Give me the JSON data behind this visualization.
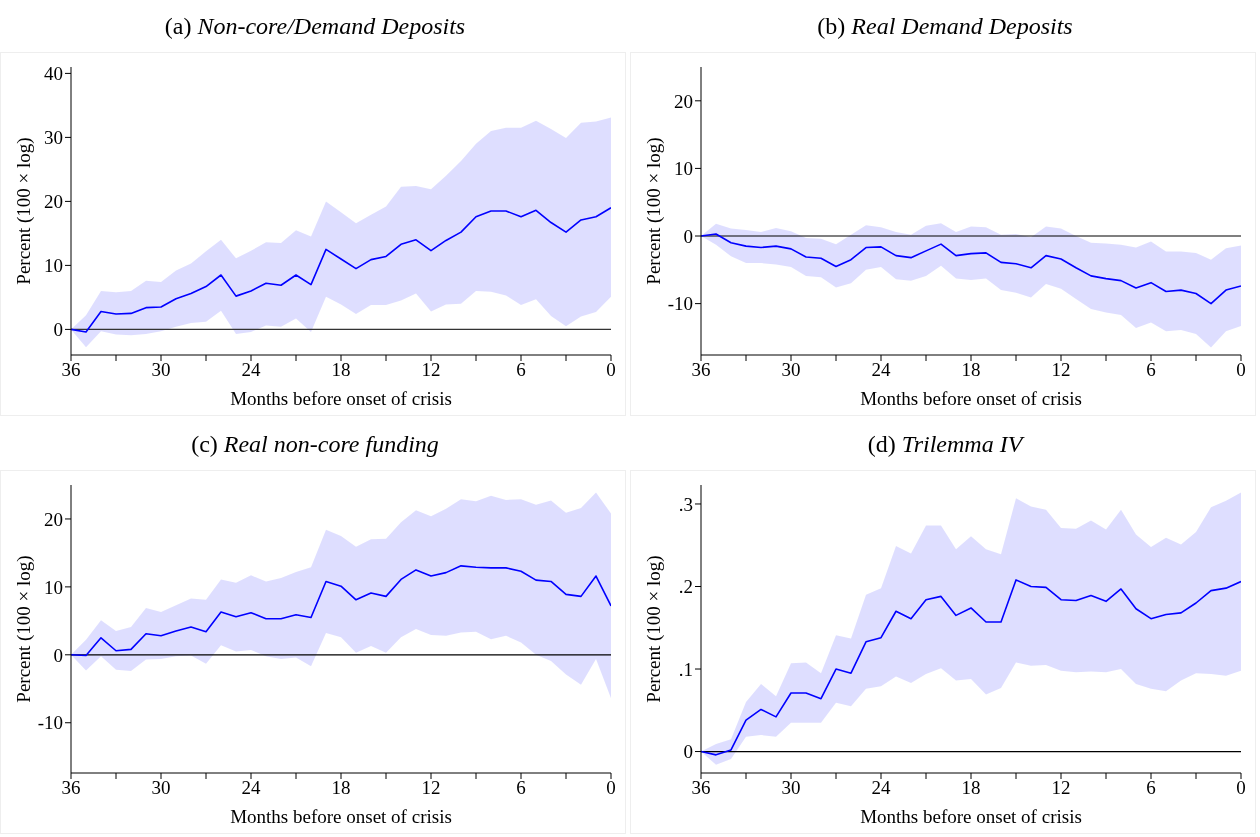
{
  "chart_data": [
    {
      "type": "line",
      "title": "(a) Non-core/Demand Deposits",
      "xlabel": "Months before onset of crisis",
      "ylabel": "Percent (100 × log)",
      "marker": "none",
      "line_style": "solid",
      "x": [
        36,
        35,
        34,
        33,
        32,
        31,
        30,
        29,
        28,
        27,
        26,
        25,
        24,
        23,
        22,
        21,
        20,
        19,
        18,
        17,
        16,
        15,
        14,
        13,
        12,
        11,
        10,
        9,
        8,
        7,
        6,
        5,
        4,
        3,
        2,
        1,
        0
      ],
      "xlim": [
        36,
        0
      ],
      "xticks": [
        36,
        {
          "value": 33,
          "label": null
        },
        30,
        {
          "value": 27,
          "label": null
        },
        24,
        {
          "value": 21,
          "label": null
        },
        18,
        {
          "value": 15,
          "label": null
        },
        12,
        {
          "value": 9,
          "label": null
        },
        6,
        {
          "value": 3,
          "label": null
        },
        0
      ],
      "ylim": [
        -4,
        41
      ],
      "yticks": [
        0,
        10,
        20,
        30,
        40
      ],
      "ref_lines": [
        {
          "axis": "y",
          "value": 0,
          "color": "#333333"
        }
      ],
      "series": [
        {
          "color": "#0000ff",
          "values": [
            0,
            -0.4,
            2.8,
            2.4,
            2.5,
            3.4,
            3.5,
            4.8,
            5.6,
            6.7,
            8.5,
            5.2,
            6.0,
            7.2,
            6.9,
            8.5,
            7.0,
            12.5,
            11.0,
            9.5,
            10.9,
            11.4,
            13.3,
            14.0,
            12.3,
            13.9,
            15.2,
            17.6,
            18.5,
            18.5,
            17.6,
            18.6,
            16.7,
            15.2,
            17.1,
            17.6,
            19.0
          ],
          "upper": [
            0,
            2.2,
            6.0,
            5.8,
            6.0,
            7.6,
            7.4,
            9.2,
            10.3,
            12.2,
            14.0,
            11.1,
            12.3,
            13.6,
            13.5,
            15.5,
            14.5,
            20.0,
            18.3,
            16.6,
            17.9,
            19.2,
            22.3,
            22.4,
            21.9,
            24.0,
            26.3,
            29.0,
            31.0,
            31.5,
            31.5,
            32.6,
            31.3,
            29.9,
            32.3,
            32.5,
            33.1
          ],
          "lower": [
            0,
            -2.8,
            -0.3,
            -0.8,
            -0.9,
            -0.7,
            -0.3,
            0.4,
            1.0,
            1.2,
            2.9,
            -0.7,
            -0.4,
            0.6,
            0.4,
            1.7,
            -0.4,
            5.1,
            3.9,
            2.4,
            3.8,
            3.8,
            4.5,
            5.6,
            2.8,
            3.9,
            4.0,
            6.0,
            5.9,
            5.3,
            3.8,
            4.7,
            2.1,
            0.5,
            2.0,
            2.7,
            5.1
          ]
        }
      ]
    },
    {
      "type": "line",
      "title": "(b) Real Demand Deposits",
      "xlabel": "Months before onset of crisis",
      "ylabel": "Percent (100 × log)",
      "marker": "none",
      "line_style": "solid",
      "x": [
        36,
        35,
        34,
        33,
        32,
        31,
        30,
        29,
        28,
        27,
        26,
        25,
        24,
        23,
        22,
        21,
        20,
        19,
        18,
        17,
        16,
        15,
        14,
        13,
        12,
        11,
        10,
        9,
        8,
        7,
        6,
        5,
        4,
        3,
        2,
        1,
        0
      ],
      "xlim": [
        36,
        0
      ],
      "xticks": [
        36,
        {
          "value": 33,
          "label": null
        },
        30,
        {
          "value": 27,
          "label": null
        },
        24,
        {
          "value": 21,
          "label": null
        },
        18,
        {
          "value": 15,
          "label": null
        },
        12,
        {
          "value": 9,
          "label": null
        },
        6,
        {
          "value": 3,
          "label": null
        },
        0
      ],
      "ylim": [
        -17.6,
        25
      ],
      "yticks": [
        -10,
        0,
        10,
        20
      ],
      "ref_lines": [
        {
          "axis": "y",
          "value": 0,
          "color": "#000000"
        }
      ],
      "series": [
        {
          "color": "#0000ff",
          "values": [
            0,
            0.3,
            -1.0,
            -1.5,
            -1.7,
            -1.5,
            -1.9,
            -3.1,
            -3.3,
            -4.5,
            -3.5,
            -1.7,
            -1.6,
            -2.9,
            -3.2,
            -2.2,
            -1.2,
            -2.9,
            -2.6,
            -2.5,
            -3.9,
            -4.1,
            -4.7,
            -2.9,
            -3.4,
            -4.7,
            -5.9,
            -6.3,
            -6.6,
            -7.7,
            -6.9,
            -8.2,
            -8.0,
            -8.5,
            -10.0,
            -8.0,
            -7.4
          ],
          "upper": [
            0,
            1.8,
            1.1,
            0.9,
            0.6,
            1.2,
            0.7,
            -0.3,
            -0.4,
            -1.2,
            0.2,
            1.6,
            1.3,
            0.6,
            0.2,
            1.5,
            1.9,
            0.6,
            1.4,
            1.3,
            0.2,
            0.3,
            -0.2,
            1.4,
            1.1,
            0,
            -1.0,
            -1.1,
            -1.3,
            -1.7,
            -0.8,
            -2.3,
            -2.3,
            -2.5,
            -3.5,
            -1.8,
            -1.4
          ],
          "lower": [
            0,
            -1.3,
            -3.0,
            -4.0,
            -4.0,
            -4.2,
            -4.6,
            -5.9,
            -6.1,
            -7.6,
            -7.0,
            -5.0,
            -4.6,
            -6.4,
            -6.6,
            -5.9,
            -4.4,
            -6.3,
            -6.5,
            -6.3,
            -8.0,
            -8.4,
            -9.1,
            -7.1,
            -7.8,
            -9.3,
            -10.8,
            -11.3,
            -11.7,
            -13.6,
            -12.8,
            -14.1,
            -13.9,
            -14.5,
            -16.5,
            -14.1,
            -13.3
          ]
        }
      ]
    },
    {
      "type": "line",
      "title": "(c) Real non-core funding",
      "xlabel": "Months before onset of crisis",
      "ylabel": "Percent (100 × log)",
      "marker": "none",
      "line_style": "solid",
      "x": [
        36,
        35,
        34,
        33,
        32,
        31,
        30,
        29,
        28,
        27,
        26,
        25,
        24,
        23,
        22,
        21,
        20,
        19,
        18,
        17,
        16,
        15,
        14,
        13,
        12,
        11,
        10,
        9,
        8,
        7,
        6,
        5,
        4,
        3,
        2,
        1,
        0
      ],
      "xlim": [
        36,
        0
      ],
      "xticks": [
        36,
        {
          "value": 33,
          "label": null
        },
        30,
        {
          "value": 27,
          "label": null
        },
        24,
        {
          "value": 21,
          "label": null
        },
        18,
        {
          "value": 15,
          "label": null
        },
        12,
        {
          "value": 9,
          "label": null
        },
        6,
        {
          "value": 3,
          "label": null
        },
        0
      ],
      "ylim": [
        -17.4,
        25
      ],
      "yticks": [
        -10,
        0,
        10,
        20
      ],
      "ref_lines": [
        {
          "axis": "y",
          "value": 0,
          "color": "#000000"
        }
      ],
      "series": [
        {
          "color": "#0000ff",
          "values": [
            0,
            -0.1,
            2.5,
            0.6,
            0.8,
            3.1,
            2.8,
            3.5,
            4.1,
            3.4,
            6.3,
            5.6,
            6.2,
            5.3,
            5.3,
            5.9,
            5.5,
            10.8,
            10.1,
            8.1,
            9.1,
            8.6,
            11.1,
            12.5,
            11.6,
            12.1,
            13.1,
            12.9,
            12.8,
            12.8,
            12.3,
            11.0,
            10.8,
            8.9,
            8.6,
            11.6,
            7.2
          ],
          "upper": [
            0,
            2.2,
            5.1,
            3.5,
            4.1,
            6.9,
            6.3,
            7.3,
            8.3,
            8.1,
            11.1,
            10.6,
            11.7,
            10.8,
            11.3,
            12.2,
            12.9,
            18.4,
            17.5,
            15.9,
            17.0,
            17.1,
            19.5,
            21.3,
            20.4,
            21.5,
            22.9,
            22.6,
            23.4,
            22.8,
            22.9,
            22.1,
            22.7,
            20.9,
            21.6,
            23.9,
            20.8
          ],
          "lower": [
            0,
            -2.3,
            -0.2,
            -2.2,
            -2.4,
            -0.7,
            -0.6,
            -0.2,
            -0.1,
            -1.3,
            1.4,
            0.5,
            0.7,
            -0.2,
            -0.6,
            -0.4,
            -1.7,
            3.2,
            2.6,
            0.3,
            1.3,
            0.3,
            2.6,
            3.8,
            2.9,
            2.8,
            3.3,
            3.4,
            2.3,
            2.8,
            1.8,
            0,
            -0.9,
            -2.9,
            -4.4,
            -0.6,
            -6.4
          ]
        }
      ]
    },
    {
      "type": "line",
      "title": "(d) Trilemma IV",
      "xlabel": "Months before onset of crisis",
      "ylabel": "Percent (100 × log)",
      "marker": "none",
      "line_style": "solid",
      "x": [
        36,
        35,
        34,
        33,
        32,
        31,
        30,
        29,
        28,
        27,
        26,
        25,
        24,
        23,
        22,
        21,
        20,
        19,
        18,
        17,
        16,
        15,
        14,
        13,
        12,
        11,
        10,
        9,
        8,
        7,
        6,
        5,
        4,
        3,
        2,
        1,
        0
      ],
      "xlim": [
        36,
        0
      ],
      "xticks": [
        36,
        {
          "value": 33,
          "label": null
        },
        30,
        {
          "value": 27,
          "label": null
        },
        24,
        {
          "value": 21,
          "label": null
        },
        18,
        {
          "value": 15,
          "label": null
        },
        12,
        {
          "value": 9,
          "label": null
        },
        6,
        {
          "value": 3,
          "label": null
        },
        0
      ],
      "ylim": [
        -0.026,
        0.323
      ],
      "yticks": [
        0,
        {
          "value": 0.1,
          "label": ".1"
        },
        {
          "value": 0.2,
          "label": ".2"
        },
        {
          "value": 0.3,
          "label": ".3"
        }
      ],
      "ref_lines": [
        {
          "axis": "y",
          "value": 0,
          "color": "#000000"
        }
      ],
      "series": [
        {
          "color": "#0000ff",
          "values": [
            0,
            -0.004,
            0.002,
            0.038,
            0.051,
            0.042,
            0.071,
            0.071,
            0.064,
            0.1,
            0.095,
            0.133,
            0.138,
            0.17,
            0.161,
            0.184,
            0.188,
            0.165,
            0.174,
            0.157,
            0.157,
            0.208,
            0.2,
            0.199,
            0.184,
            0.183,
            0.189,
            0.182,
            0.197,
            0.173,
            0.161,
            0.166,
            0.168,
            0.18,
            0.195,
            0.198,
            0.206
          ],
          "upper": [
            0,
            0.009,
            0.015,
            0.06,
            0.082,
            0.067,
            0.107,
            0.108,
            0.095,
            0.141,
            0.137,
            0.19,
            0.198,
            0.249,
            0.24,
            0.274,
            0.274,
            0.245,
            0.261,
            0.245,
            0.239,
            0.307,
            0.297,
            0.293,
            0.271,
            0.27,
            0.28,
            0.269,
            0.293,
            0.263,
            0.248,
            0.259,
            0.251,
            0.266,
            0.296,
            0.304,
            0.314
          ],
          "lower": [
            0,
            -0.016,
            -0.009,
            0.018,
            0.02,
            0.018,
            0.035,
            0.035,
            0.035,
            0.059,
            0.055,
            0.076,
            0.079,
            0.091,
            0.083,
            0.094,
            0.101,
            0.086,
            0.088,
            0.069,
            0.077,
            0.108,
            0.104,
            0.105,
            0.098,
            0.096,
            0.097,
            0.096,
            0.1,
            0.082,
            0.076,
            0.073,
            0.086,
            0.095,
            0.094,
            0.092,
            0.098
          ]
        }
      ]
    }
  ]
}
